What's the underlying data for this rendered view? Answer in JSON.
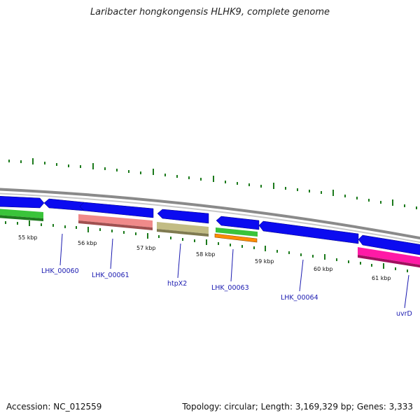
{
  "title": "Laribacter hongkongensis HLHK9, complete genome",
  "footer": {
    "accession": "Accession: NC_012559",
    "summary": "Topology: circular; Length: 3,169,329 bp; Genes: 3,333"
  },
  "colors": {
    "cds": "#0b0bf0",
    "trna": "#3ac43a",
    "rrna": "#f08a8a",
    "misc": "#c2bc84",
    "repeat": "#ff8c00",
    "other": "#ff1aa6",
    "backbone": "#8a8a8a",
    "tick": "#1c7a1c",
    "label": "#1a1ab0"
  },
  "kbp_labels": [
    "55 kbp",
    "56 kbp",
    "57 kbp",
    "58 kbp",
    "59 kbp",
    "60 kbp",
    "61 kbp"
  ],
  "gene_labels": [
    "LHK_00060",
    "LHK_00061",
    "htpX2",
    "LHK_00063",
    "LHK_00064",
    "uvrD"
  ]
}
